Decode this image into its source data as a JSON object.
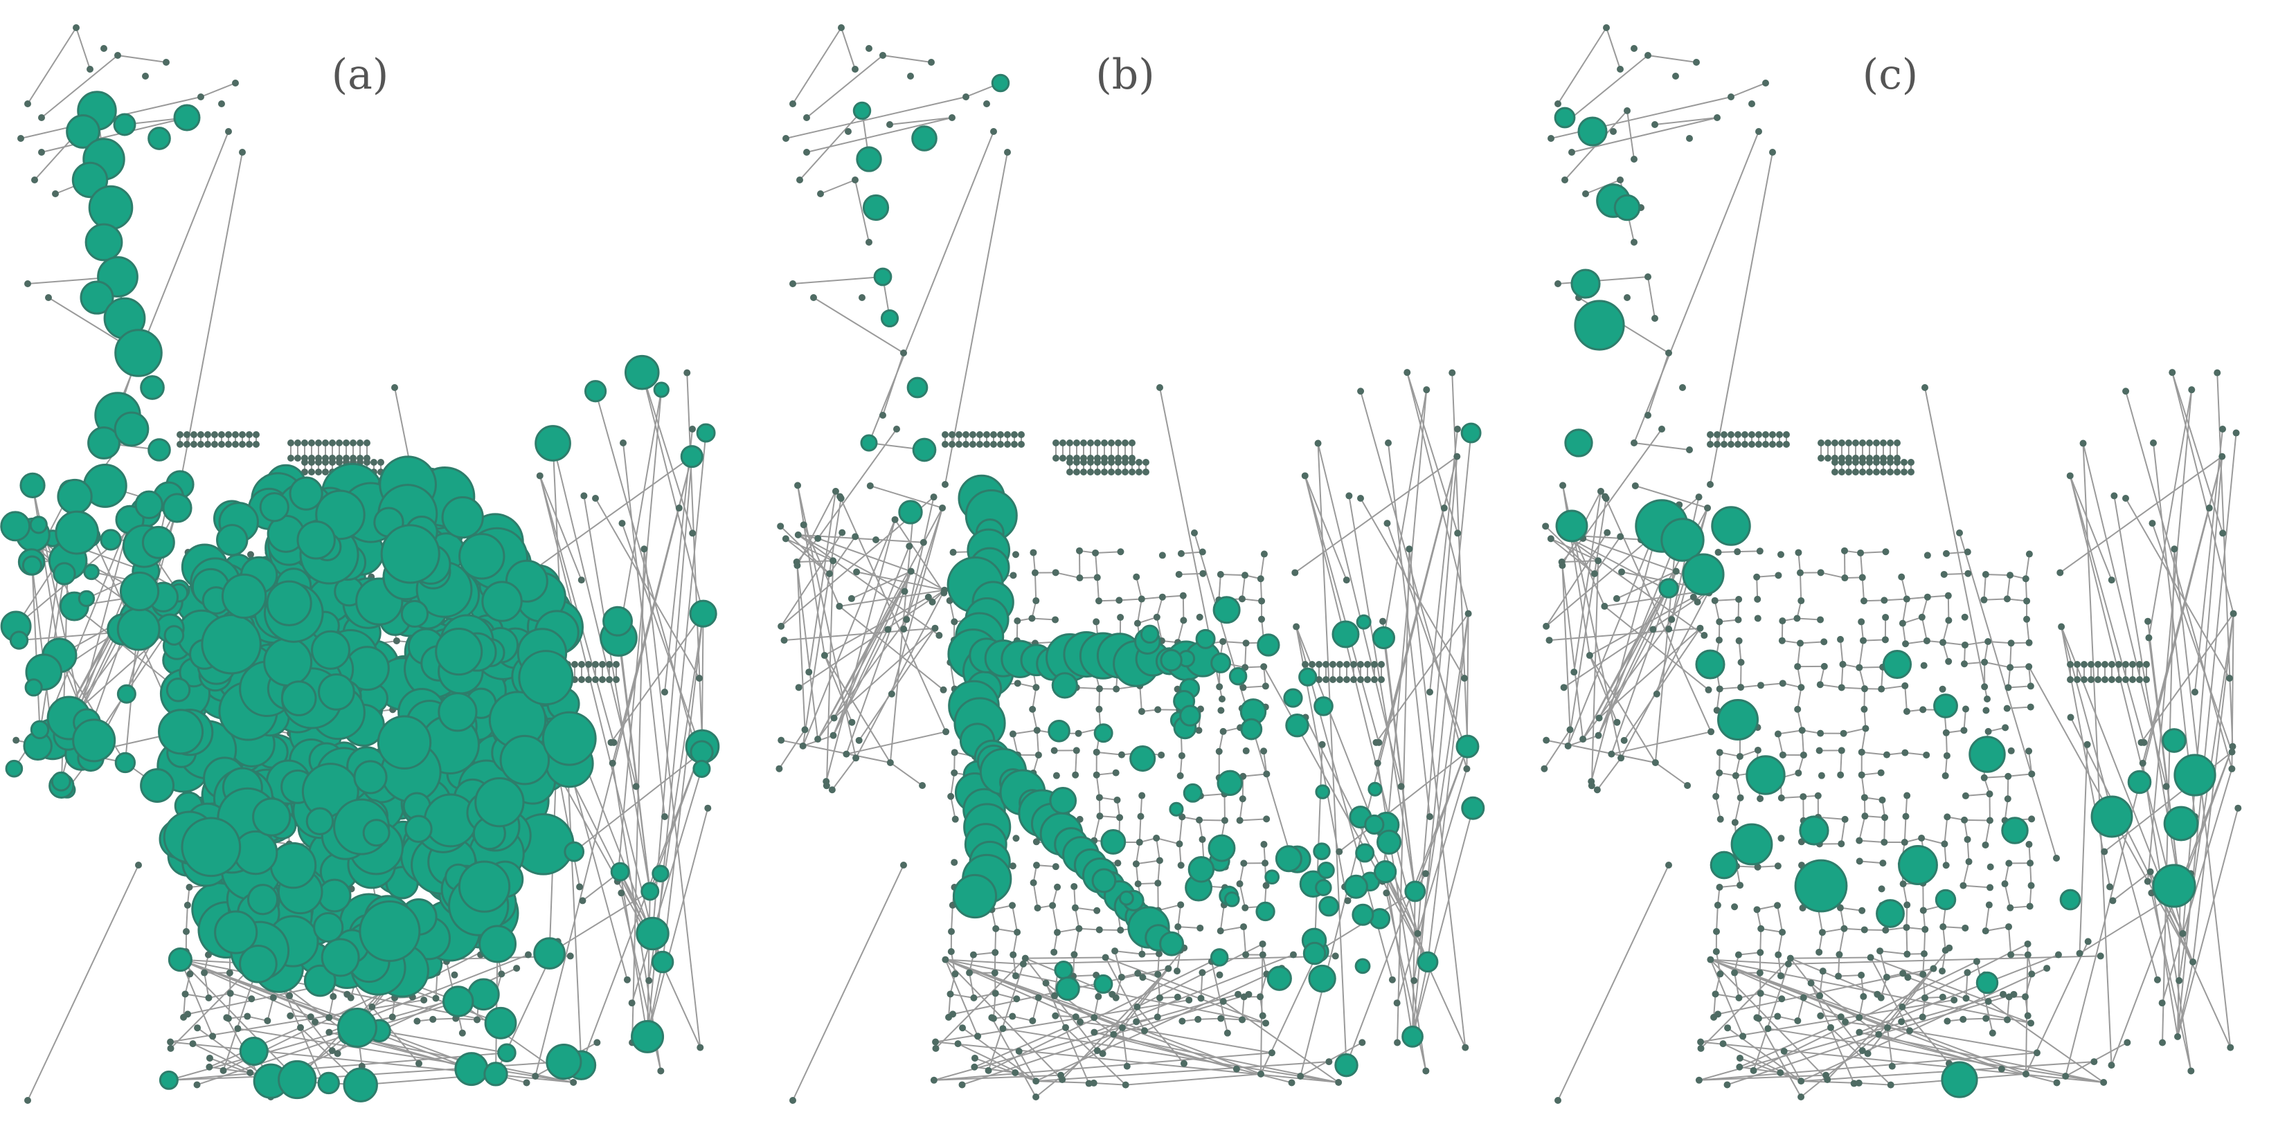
{
  "figure": {
    "panels": [
      {
        "id": "a",
        "label": "(a)",
        "emphasis": "dense"
      },
      {
        "id": "b",
        "label": "(b)",
        "emphasis": "corridor"
      },
      {
        "id": "c",
        "label": "(c)",
        "emphasis": "sparse"
      }
    ]
  },
  "style": {
    "edge_color": "#9a9a9a",
    "node_color": "#4e6b63",
    "highlight_fill": "#1aa384",
    "highlight_stroke": "#2e7d6b"
  }
}
